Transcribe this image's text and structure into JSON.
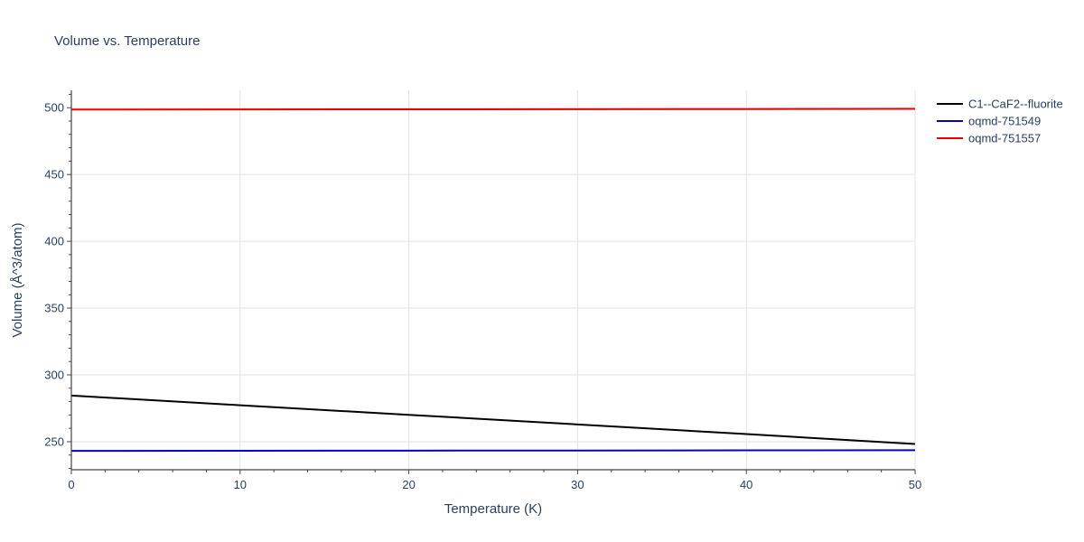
{
  "chart_data": {
    "type": "line",
    "title": "Volume vs. Temperature",
    "xlabel": "Temperature (K)",
    "ylabel": "Volume (Å^3/atom)",
    "xlim": [
      0,
      50
    ],
    "ylim": [
      229,
      513
    ],
    "x_ticks": [
      0,
      10,
      20,
      30,
      40,
      50
    ],
    "y_ticks": [
      250,
      300,
      350,
      400,
      450,
      500
    ],
    "grid": true,
    "legend_position": "top-right outside",
    "series": [
      {
        "name": "C1--CaF2--fluorite",
        "color": "#000000",
        "x": [
          0,
          10,
          20,
          30,
          40,
          50
        ],
        "values": [
          284.5,
          277.3,
          270.1,
          262.9,
          255.7,
          248.3
        ]
      },
      {
        "name": "oqmd-751549",
        "color": "#0000cc",
        "x": [
          0,
          10,
          20,
          30,
          40,
          50
        ],
        "values": [
          243.1,
          243.2,
          243.3,
          243.4,
          243.5,
          243.6
        ]
      },
      {
        "name": "oqmd-751557",
        "color": "#ee0000",
        "x": [
          0,
          10,
          20,
          30,
          40,
          50
        ],
        "values": [
          498.6,
          498.7,
          498.8,
          498.9,
          499.0,
          499.1
        ]
      }
    ]
  }
}
